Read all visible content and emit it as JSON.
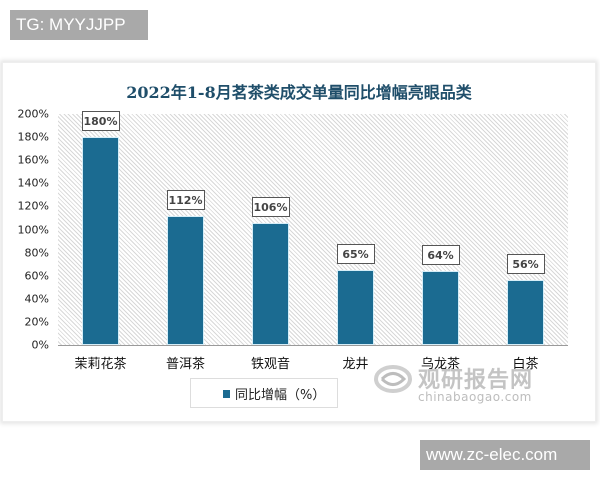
{
  "badges": {
    "top_left": "TG: MYYJJPP",
    "bottom_right": "www.zc-elec.com"
  },
  "watermark": {
    "logo_icon": "swirl-logo-icon",
    "cn": "观研报告网",
    "en": "chinabaogao.com"
  },
  "colors": {
    "bar": "#1b6b91",
    "title": "#1f4e6a",
    "badge_bg": "#a9a9a9"
  },
  "chart_data": {
    "type": "bar",
    "title": "2022年1-8月茗茶类成交单量同比增幅亮眼品类",
    "xlabel": "",
    "ylabel": "",
    "categories": [
      "茉莉花茶",
      "普洱茶",
      "铁观音",
      "龙井",
      "乌龙茶",
      "白茶"
    ],
    "series": [
      {
        "name": "同比增幅（%）",
        "values": [
          180,
          112,
          106,
          65,
          64,
          56
        ]
      }
    ],
    "data_labels": [
      "180%",
      "112%",
      "106%",
      "65%",
      "64%",
      "56%"
    ],
    "ylim": [
      0,
      200
    ],
    "yticks": [
      "200%",
      "180%",
      "160%",
      "140%",
      "120%",
      "100%",
      "80%",
      "60%",
      "40%",
      "20%",
      "0%"
    ],
    "legend": {
      "position": "bottom",
      "entries": [
        "同比增幅（%）"
      ]
    },
    "grid": false,
    "background": "diagonal-hatch"
  }
}
